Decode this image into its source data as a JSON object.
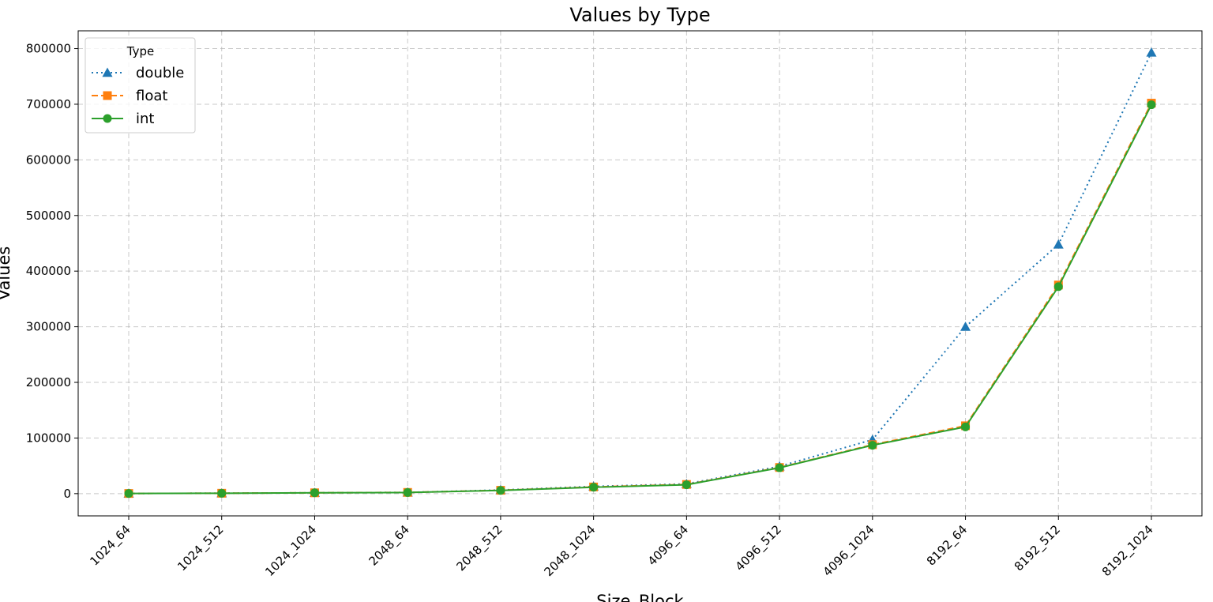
{
  "chart_data": {
    "type": "line",
    "title": "Values by Type",
    "xlabel": "Size_Block",
    "ylabel": "Values",
    "categories": [
      "1024_64",
      "1024_512",
      "1024_1024",
      "2048_64",
      "2048_512",
      "2048_1024",
      "4096_64",
      "4096_512",
      "4096_1024",
      "8192_64",
      "8192_512",
      "8192_1024"
    ],
    "ylim": [
      -40000,
      832000
    ],
    "yticks": [
      0,
      100000,
      200000,
      300000,
      400000,
      500000,
      600000,
      700000,
      800000
    ],
    "grid": true,
    "legend": {
      "title": "Type",
      "placement": "top-left"
    },
    "series": [
      {
        "name": "double",
        "color": "#1f77b4",
        "marker": "triangle",
        "linestyle": "dotted",
        "values": [
          300,
          700,
          1500,
          2200,
          6500,
          13000,
          17500,
          49000,
          97000,
          300000,
          448000,
          793000
        ]
      },
      {
        "name": "float",
        "color": "#ff7f0e",
        "marker": "square",
        "linestyle": "dashed",
        "values": [
          300,
          700,
          1500,
          2200,
          6000,
          12000,
          16500,
          47000,
          88000,
          122000,
          375000,
          702000
        ]
      },
      {
        "name": "int",
        "color": "#2ca02c",
        "marker": "circle",
        "linestyle": "solid",
        "values": [
          300,
          700,
          1500,
          2000,
          5800,
          11500,
          16000,
          46500,
          87000,
          120000,
          372000,
          699000
        ]
      }
    ]
  }
}
